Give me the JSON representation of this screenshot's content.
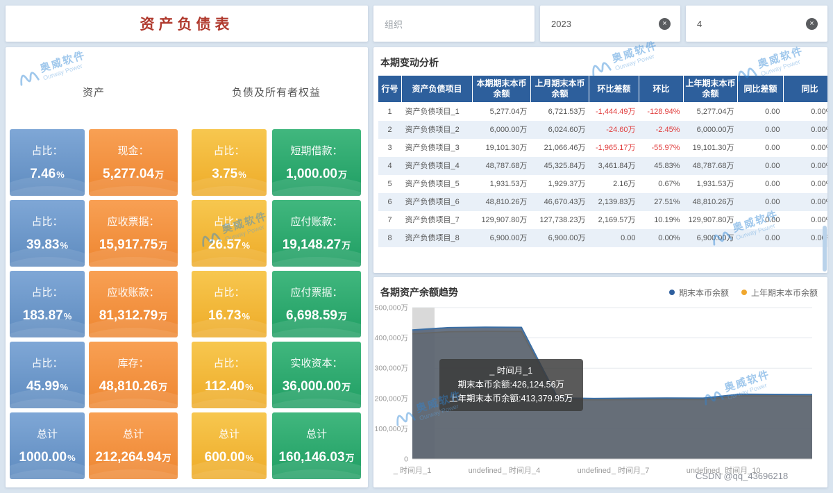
{
  "page": {
    "title": "资产负债表",
    "csdn_watermark": "CSDN @qq_43696218"
  },
  "watermark": {
    "cn": "奥威软件",
    "en": "Ourway Power"
  },
  "filters": {
    "org": {
      "placeholder": "组织"
    },
    "year": {
      "value": "2023"
    },
    "month": {
      "value": "4"
    },
    "clear_icon": "×"
  },
  "cards": {
    "asset_header": "资产",
    "liability_header": "负债及所有者权益",
    "columns": [
      {
        "name": "asset-ratio",
        "theme": "blue",
        "items": [
          {
            "label": "占比：",
            "value": "7.46",
            "unit": "%"
          },
          {
            "label": "占比：",
            "value": "39.83",
            "unit": "%"
          },
          {
            "label": "占比：",
            "value": "183.87",
            "unit": "%"
          },
          {
            "label": "占比：",
            "value": "45.99",
            "unit": "%"
          },
          {
            "label": "总计",
            "value": "1000.00",
            "unit": "%"
          }
        ]
      },
      {
        "name": "asset-value",
        "theme": "orange",
        "items": [
          {
            "label": "现金：",
            "value": "5,277.04",
            "unit": "万"
          },
          {
            "label": "应收票据：",
            "value": "15,917.75",
            "unit": "万"
          },
          {
            "label": "应收账款：",
            "value": "81,312.79",
            "unit": "万"
          },
          {
            "label": "库存：",
            "value": "48,810.26",
            "unit": "万"
          },
          {
            "label": "总计",
            "value": "212,264.94",
            "unit": "万"
          }
        ]
      },
      {
        "name": "liability-ratio",
        "theme": "yellow",
        "items": [
          {
            "label": "占比：",
            "value": "3.75",
            "unit": "%"
          },
          {
            "label": "占比：",
            "value": "26.57",
            "unit": "%"
          },
          {
            "label": "占比：",
            "value": "16.73",
            "unit": "%"
          },
          {
            "label": "占比：",
            "value": "112.40",
            "unit": "%"
          },
          {
            "label": "总计",
            "value": "600.00",
            "unit": "%"
          }
        ]
      },
      {
        "name": "liability-value",
        "theme": "green",
        "items": [
          {
            "label": "短期借款：",
            "value": "1,000.00",
            "unit": "万"
          },
          {
            "label": "应付账款：",
            "value": "19,148.27",
            "unit": "万"
          },
          {
            "label": "应付票据：",
            "value": "6,698.59",
            "unit": "万"
          },
          {
            "label": "实收资本：",
            "value": "36,000.00",
            "unit": "万"
          },
          {
            "label": "总计",
            "value": "160,146.03",
            "unit": "万"
          }
        ]
      }
    ]
  },
  "table": {
    "title": "本期变动分析",
    "headers": [
      "行号",
      "资产负债项目",
      "本期期末本币余额",
      "上月期末本币余额",
      "环比差额",
      "环比",
      "上年期末本币余额",
      "同比差额",
      "同比"
    ],
    "rows": [
      [
        "1",
        "资产负债项目_1",
        "5,277.04万",
        "6,721.53万",
        "-1,444.49万",
        "-128.94%",
        "5,277.04万",
        "0.00",
        "0.00%"
      ],
      [
        "2",
        "资产负债项目_2",
        "6,000.00万",
        "6,024.60万",
        "-24.60万",
        "-2.45%",
        "6,000.00万",
        "0.00",
        "0.00%"
      ],
      [
        "3",
        "资产负债项目_3",
        "19,101.30万",
        "21,066.46万",
        "-1,965.17万",
        "-55.97%",
        "19,101.30万",
        "0.00",
        "0.00%"
      ],
      [
        "4",
        "资产负债项目_4",
        "48,787.68万",
        "45,325.84万",
        "3,461.84万",
        "45.83%",
        "48,787.68万",
        "0.00",
        "0.00%"
      ],
      [
        "5",
        "资产负债项目_5",
        "1,931.53万",
        "1,929.37万",
        "2.16万",
        "0.67%",
        "1,931.53万",
        "0.00",
        "0.00%"
      ],
      [
        "6",
        "资产负债项目_6",
        "48,810.26万",
        "46,670.43万",
        "2,139.83万",
        "27.51%",
        "48,810.26万",
        "0.00",
        "0.00%"
      ],
      [
        "7",
        "资产负债项目_7",
        "129,907.80万",
        "127,738.23万",
        "2,169.57万",
        "10.19%",
        "129,907.80万",
        "0.00",
        "0.00%"
      ],
      [
        "8",
        "资产负债项目_8",
        "6,900.00万",
        "6,900.00万",
        "0.00",
        "0.00%",
        "6,900.00万",
        "0.00",
        "0.00%"
      ]
    ]
  },
  "chart_data": {
    "type": "area",
    "title": "各期资产余额趋势",
    "legend": [
      {
        "name": "期末本币余额",
        "color": "#2e5f9e"
      },
      {
        "name": "上年期末本币余额",
        "color": "#f0a72e"
      }
    ],
    "legend_position": "top-right",
    "grid": true,
    "xlabel": "",
    "ylabel": "",
    "ylim": [
      0,
      500000
    ],
    "y_ticks": [
      "500,000万",
      "400,000万",
      "300,000万",
      "200,000万",
      "100,000万",
      "0"
    ],
    "x": [
      1,
      2,
      3,
      4,
      5,
      6,
      7,
      8,
      9,
      10,
      11,
      12
    ],
    "x_tick_labels": [
      "_ 时间月_1",
      "",
      "undefined",
      "_ 时间月_4",
      "",
      "undefined",
      "_ 时间月_7",
      "",
      "undefined",
      "_ 时间月_10",
      "",
      ""
    ],
    "series": [
      {
        "name": "期末本币余额",
        "color": "#3a6ea5",
        "fill": "rgba(76,92,114,0.85)",
        "values": [
          426124.56,
          433800,
          435200,
          434600,
          201500,
          199800,
          200600,
          201200,
          200900,
          213800,
          213200,
          212600
        ]
      },
      {
        "name": "上年期末本币余额",
        "color": "#f0a72e",
        "fill": "rgba(240,173,60,0.5)",
        "values": [
          413379.95,
          420500,
          421800,
          421300,
          196800,
          195200,
          196000,
          196600,
          196300,
          208500,
          208000,
          207400
        ]
      }
    ],
    "highlight_band_index": 0,
    "tooltip": {
      "title": "_ 时间月_1",
      "lines": [
        "期末本币余额:426,124.56万",
        "上年期末本币余额:413,379.95万"
      ]
    }
  }
}
